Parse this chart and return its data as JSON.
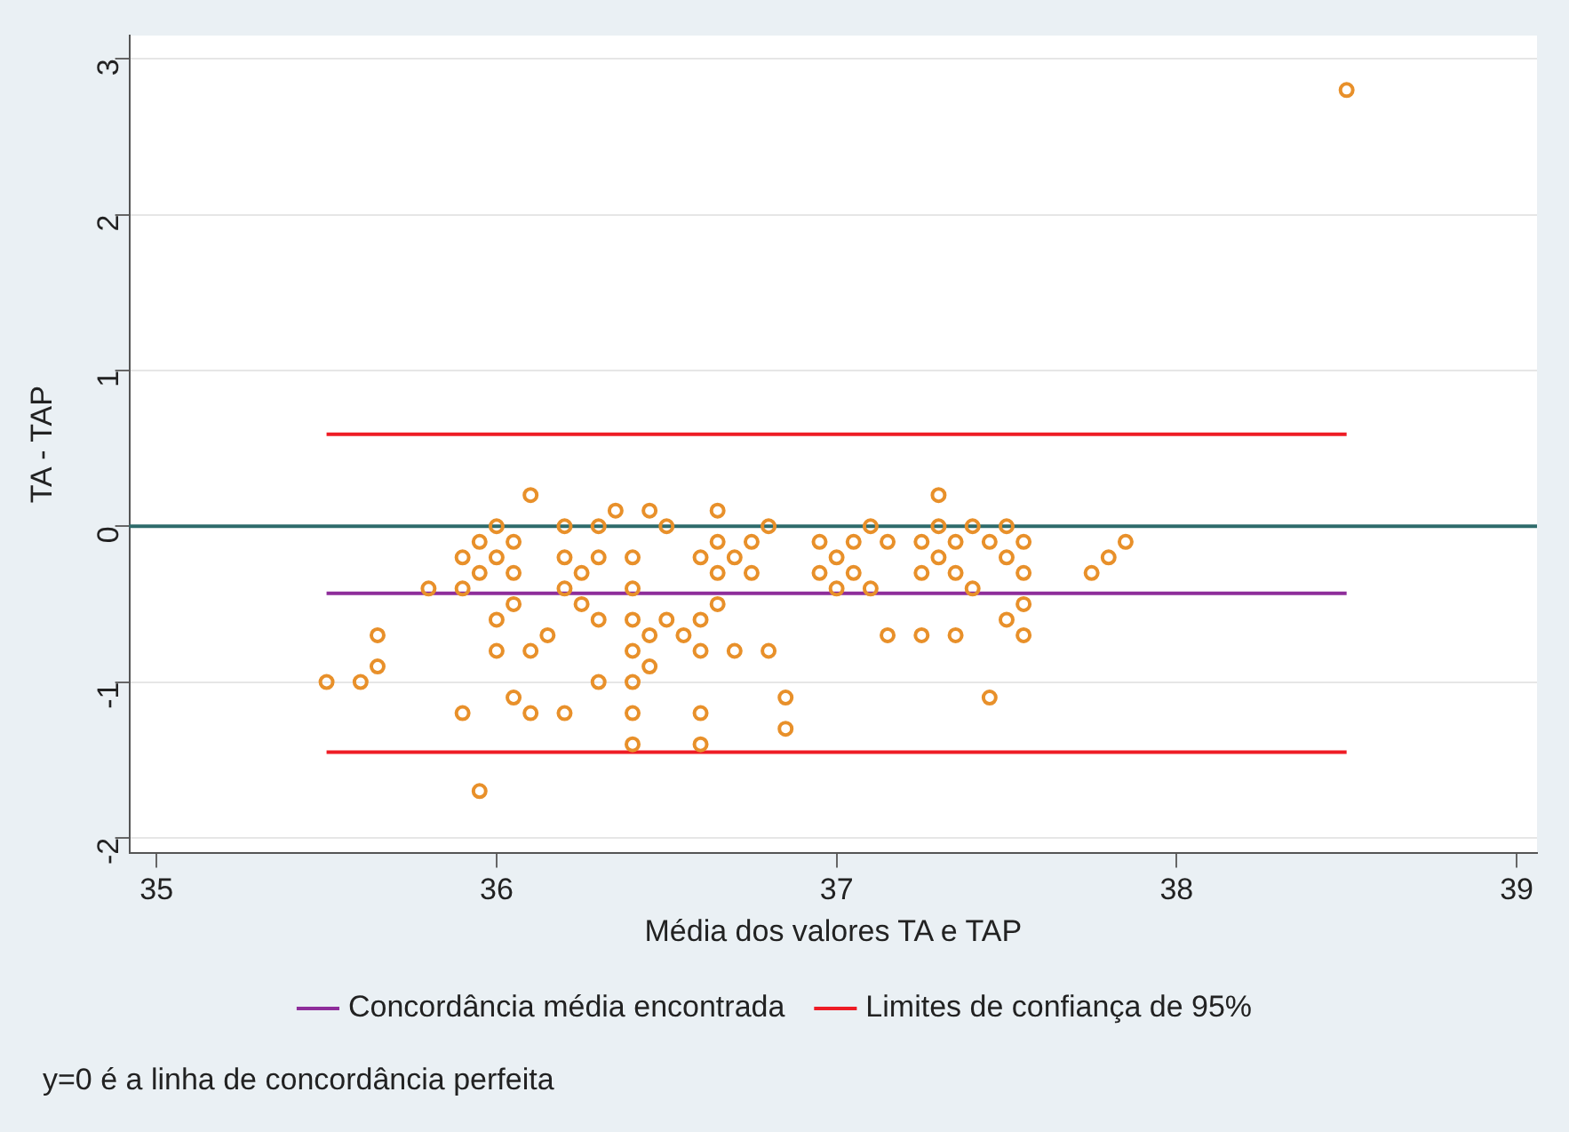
{
  "chart_data": {
    "type": "scatter",
    "xlabel": "Média dos valores TA e TAP",
    "ylabel": "TA - TAP",
    "xlim": [
      34.92,
      39.06
    ],
    "xticks": [
      35,
      36,
      37,
      38,
      39
    ],
    "ylim": [
      -2.1,
      3.15
    ],
    "yticks": [
      -2,
      -1,
      0,
      1,
      2,
      3
    ],
    "grid": "y",
    "legend": "bottom",
    "ref_lines": [
      {
        "axis": "y",
        "value": 0,
        "color": "#2e6b6b"
      }
    ],
    "annotations": [
      "y=0 é a linha de concordância perfeita"
    ],
    "series": [
      {
        "color": "#e8902a",
        "marker": "circle",
        "x": [
          35.5,
          35.6,
          35.65,
          35.65,
          35.8,
          35.9,
          35.9,
          35.9,
          35.95,
          35.95,
          35.95,
          36.0,
          36.0,
          36.0,
          36.0,
          36.05,
          36.05,
          36.05,
          36.05,
          36.1,
          36.1,
          36.1,
          36.15,
          36.2,
          36.2,
          36.2,
          36.2,
          36.25,
          36.25,
          36.3,
          36.3,
          36.3,
          36.3,
          36.35,
          36.4,
          36.4,
          36.4,
          36.4,
          36.4,
          36.4,
          36.4,
          36.45,
          36.45,
          36.45,
          36.5,
          36.5,
          36.55,
          36.6,
          36.6,
          36.6,
          36.6,
          36.6,
          36.65,
          36.65,
          36.65,
          36.65,
          36.7,
          36.7,
          36.75,
          36.75,
          36.8,
          36.8,
          36.85,
          36.85,
          36.95,
          36.95,
          37.0,
          37.0,
          37.05,
          37.05,
          37.1,
          37.1,
          37.15,
          37.15,
          37.25,
          37.25,
          37.25,
          37.3,
          37.3,
          37.3,
          37.35,
          37.35,
          37.35,
          37.4,
          37.4,
          37.45,
          37.45,
          37.5,
          37.5,
          37.5,
          37.55,
          37.55,
          37.55,
          37.55,
          37.75,
          37.8,
          37.85,
          38.5
        ],
        "values": [
          -1.0,
          -1.0,
          -0.7,
          -0.9,
          -0.4,
          -0.2,
          -0.4,
          -1.2,
          -0.1,
          -0.3,
          -1.7,
          0,
          -0.2,
          -0.6,
          -0.8,
          -0.1,
          -0.3,
          -0.5,
          -1.1,
          0.2,
          -0.8,
          -1.2,
          -0.7,
          0,
          -0.2,
          -0.4,
          -1.2,
          -0.3,
          -0.5,
          0,
          -0.2,
          -0.6,
          -1.0,
          0.1,
          -0.2,
          -0.4,
          -0.6,
          -0.8,
          -1.0,
          -1.2,
          -1.4,
          0.1,
          -0.7,
          -0.9,
          0,
          -0.6,
          -0.7,
          -0.2,
          -0.6,
          -0.8,
          -1.2,
          -1.4,
          0.1,
          -0.1,
          -0.3,
          -0.5,
          -0.2,
          -0.8,
          -0.1,
          -0.3,
          0,
          -0.8,
          -1.1,
          -1.3,
          -0.1,
          -0.3,
          -0.2,
          -0.4,
          -0.1,
          -0.3,
          0,
          -0.4,
          -0.1,
          -0.7,
          -0.1,
          -0.3,
          -0.7,
          0.2,
          0,
          -0.2,
          -0.1,
          -0.3,
          -0.7,
          0,
          -0.4,
          -0.1,
          -1.1,
          0,
          -0.2,
          -0.6,
          -0.1,
          -0.3,
          -0.5,
          -0.7,
          -0.3,
          -0.2,
          -0.1,
          2.8
        ]
      },
      {
        "type": "line",
        "name": "Concordância média encontrada",
        "color": "#8e2d9a",
        "x": [
          35.5,
          38.5
        ],
        "values": [
          -0.43,
          -0.43
        ]
      },
      {
        "type": "line",
        "name": "Limites de confiança de 95%",
        "color": "#ee1c25",
        "x": [
          35.5,
          38.5
        ],
        "values": [
          0.59,
          0.59
        ]
      },
      {
        "type": "line",
        "color": "#ee1c25",
        "x": [
          35.5,
          38.5
        ],
        "values": [
          -1.45,
          -1.45
        ]
      }
    ]
  }
}
